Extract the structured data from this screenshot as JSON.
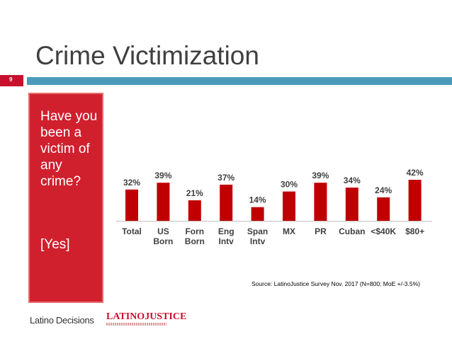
{
  "slide": {
    "title": "Crime Victimization",
    "page_number": "9"
  },
  "question": {
    "text": "Have you been a victim of any crime?",
    "answer": "[Yes]"
  },
  "source": "Source: LatinoJustice Survey Nov. 2017 (N=800; MoE +/-3.5%)",
  "logos": {
    "latino_decisions": "Latino Decisions",
    "latino_justice": "LATINOJUSTICE"
  },
  "colors": {
    "bar": "#c00000",
    "accent_red": "#d0202e",
    "rule_blue": "#4a9bbb"
  },
  "chart_data": {
    "type": "bar",
    "categories": [
      "Total",
      "US Born",
      "Forn Born",
      "Eng Intv",
      "Span Intv",
      "MX",
      "PR",
      "Cuban",
      "<$40K",
      "$80+"
    ],
    "category_lines": [
      [
        "Total"
      ],
      [
        "US",
        "Born"
      ],
      [
        "Forn",
        "Born"
      ],
      [
        "Eng",
        "Intv"
      ],
      [
        "Span",
        "Intv"
      ],
      [
        "MX"
      ],
      [
        "PR"
      ],
      [
        "Cuban"
      ],
      [
        "<$40K"
      ],
      [
        "$80+"
      ]
    ],
    "values": [
      32,
      39,
      21,
      37,
      14,
      30,
      39,
      34,
      24,
      42
    ],
    "value_labels": [
      "32%",
      "39%",
      "21%",
      "37%",
      "14%",
      "30%",
      "39%",
      "34%",
      "24%",
      "42%"
    ],
    "unit": "%"
  }
}
